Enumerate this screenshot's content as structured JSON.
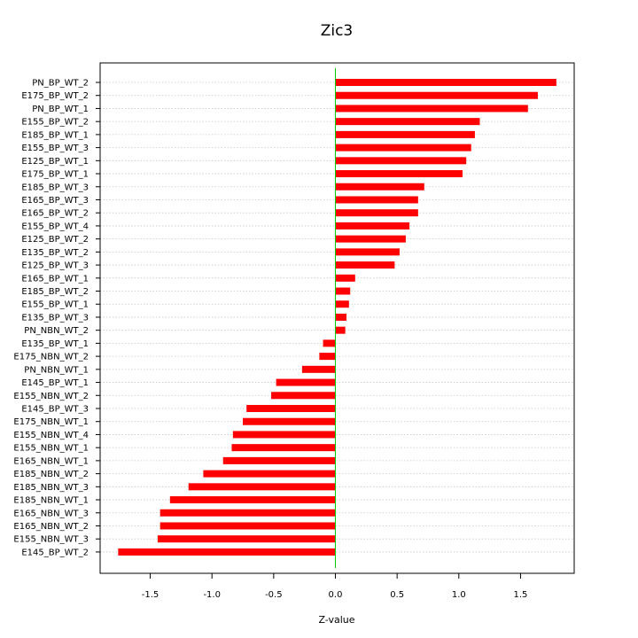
{
  "chart_data": {
    "type": "bar",
    "orientation": "horizontal",
    "title": "Zic3",
    "xlabel": "Z-value",
    "ylabel": "",
    "xlim": [
      -1.9,
      1.9
    ],
    "xticks": [
      -1.5,
      -1.0,
      -0.5,
      0.0,
      0.5,
      1.0,
      1.5
    ],
    "xtick_labels": [
      "-1.5",
      "-1.0",
      "-0.5",
      "0.0",
      "0.5",
      "1.0",
      "1.5"
    ],
    "grid": "horizontal dotted",
    "bar_color": "#ff0000",
    "zero_line_color": "#00cc00",
    "categories": [
      "PN_BP_WT_2",
      "E175_BP_WT_2",
      "PN_BP_WT_1",
      "E155_BP_WT_2",
      "E185_BP_WT_1",
      "E155_BP_WT_3",
      "E125_BP_WT_1",
      "E175_BP_WT_1",
      "E185_BP_WT_3",
      "E165_BP_WT_3",
      "E165_BP_WT_2",
      "E155_BP_WT_4",
      "E125_BP_WT_2",
      "E135_BP_WT_2",
      "E125_BP_WT_3",
      "E165_BP_WT_1",
      "E185_BP_WT_2",
      "E155_BP_WT_1",
      "E135_BP_WT_3",
      "PN_NBN_WT_2",
      "E135_BP_WT_1",
      "E175_NBN_WT_2",
      "PN_NBN_WT_1",
      "E145_BP_WT_1",
      "E155_NBN_WT_2",
      "E145_BP_WT_3",
      "E175_NBN_WT_1",
      "E155_NBN_WT_4",
      "E155_NBN_WT_1",
      "E165_NBN_WT_1",
      "E185_NBN_WT_2",
      "E185_NBN_WT_3",
      "E185_NBN_WT_1",
      "E165_NBN_WT_3",
      "E165_NBN_WT_2",
      "E155_NBN_WT_3",
      "E145_BP_WT_2"
    ],
    "values": [
      1.79,
      1.64,
      1.56,
      1.17,
      1.13,
      1.1,
      1.06,
      1.03,
      0.72,
      0.67,
      0.67,
      0.6,
      0.57,
      0.52,
      0.48,
      0.16,
      0.12,
      0.11,
      0.09,
      0.08,
      -0.1,
      -0.13,
      -0.27,
      -0.48,
      -0.52,
      -0.72,
      -0.75,
      -0.83,
      -0.84,
      -0.91,
      -1.07,
      -1.19,
      -1.34,
      -1.42,
      -1.42,
      -1.44,
      -1.76
    ]
  }
}
